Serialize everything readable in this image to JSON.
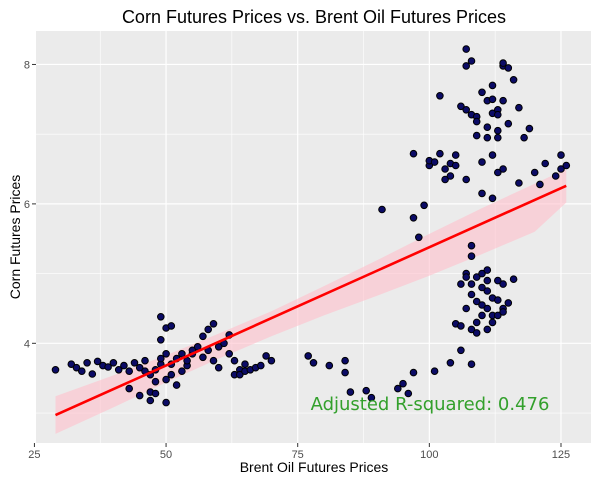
{
  "chart_data": {
    "type": "scatter",
    "title": "Corn Futures Prices vs. Brent Oil Futures Prices",
    "xlabel": "Brent Oil Futures Prices",
    "ylabel": "Corn Futures Prices",
    "xlim": [
      25.3,
      130.7
    ],
    "ylim": [
      2.57,
      8.48
    ],
    "xticks": [
      25,
      50,
      75,
      100,
      125
    ],
    "yticks": [
      4,
      6,
      8
    ],
    "grid": true,
    "legend": "none",
    "colors": {
      "panel": "#ebebeb",
      "grid": "#ffffff",
      "point_fill": "#0b0b66",
      "point_stroke": "#000000",
      "fit_line": "#ff0000",
      "confidence_band": "#ffc0cb",
      "annotation": "#33a02c"
    },
    "annotation": "Adjusted R-squared:  0.476",
    "fit": {
      "x": [
        29,
        126
      ],
      "y": [
        2.97,
        6.26
      ]
    },
    "band": {
      "x": [
        29,
        40,
        50,
        60,
        70,
        80,
        90,
        100,
        110,
        120,
        126
      ],
      "upper": [
        3.24,
        3.54,
        3.83,
        4.14,
        4.46,
        4.82,
        5.19,
        5.57,
        5.94,
        6.29,
        6.5
      ],
      "lower": [
        2.7,
        3.08,
        3.44,
        3.78,
        4.1,
        4.4,
        4.68,
        4.97,
        5.28,
        5.6,
        6.02
      ]
    },
    "points": [
      [
        29,
        3.62
      ],
      [
        32,
        3.7
      ],
      [
        33,
        3.65
      ],
      [
        34,
        3.6
      ],
      [
        35,
        3.72
      ],
      [
        36,
        3.56
      ],
      [
        37,
        3.74
      ],
      [
        38,
        3.68
      ],
      [
        39,
        3.66
      ],
      [
        40,
        3.72
      ],
      [
        41,
        3.62
      ],
      [
        42,
        3.68
      ],
      [
        43,
        3.6
      ],
      [
        43,
        3.35
      ],
      [
        44,
        3.72
      ],
      [
        45,
        3.65
      ],
      [
        45,
        3.25
      ],
      [
        46,
        3.6
      ],
      [
        46,
        3.75
      ],
      [
        47,
        3.55
      ],
      [
        47,
        3.3
      ],
      [
        47,
        3.18
      ],
      [
        48,
        3.28
      ],
      [
        48,
        3.62
      ],
      [
        48,
        3.45
      ],
      [
        49,
        3.7
      ],
      [
        49,
        3.78
      ],
      [
        49,
        4.05
      ],
      [
        49,
        4.38
      ],
      [
        50,
        3.15
      ],
      [
        50,
        3.85
      ],
      [
        50,
        3.48
      ],
      [
        50,
        4.22
      ],
      [
        51,
        3.55
      ],
      [
        51,
        3.7
      ],
      [
        51,
        4.25
      ],
      [
        52,
        3.4
      ],
      [
        52,
        3.78
      ],
      [
        53,
        3.6
      ],
      [
        53,
        3.85
      ],
      [
        54,
        3.68
      ],
      [
        54,
        3.75
      ],
      [
        55,
        3.85
      ],
      [
        55,
        3.9
      ],
      [
        56,
        3.95
      ],
      [
        57,
        3.8
      ],
      [
        57,
        4.1
      ],
      [
        58,
        3.9
      ],
      [
        58,
        4.2
      ],
      [
        59,
        4.28
      ],
      [
        59,
        3.75
      ],
      [
        60,
        3.65
      ],
      [
        60,
        3.95
      ],
      [
        61,
        4.0
      ],
      [
        62,
        4.12
      ],
      [
        62,
        3.85
      ],
      [
        63,
        3.75
      ],
      [
        63,
        3.55
      ],
      [
        64,
        3.62
      ],
      [
        64,
        3.55
      ],
      [
        65,
        3.7
      ],
      [
        65,
        3.6
      ],
      [
        66,
        3.62
      ],
      [
        67,
        3.65
      ],
      [
        68,
        3.68
      ],
      [
        69,
        3.82
      ],
      [
        70,
        3.75
      ],
      [
        77,
        3.82
      ],
      [
        78,
        3.72
      ],
      [
        81,
        3.68
      ],
      [
        84,
        3.58
      ],
      [
        84,
        3.75
      ],
      [
        85,
        3.3
      ],
      [
        88,
        3.32
      ],
      [
        89,
        3.22
      ],
      [
        91,
        5.92
      ],
      [
        94,
        3.35
      ],
      [
        95,
        3.42
      ],
      [
        96,
        3.28
      ],
      [
        97,
        3.58
      ],
      [
        97,
        5.8
      ],
      [
        97,
        6.72
      ],
      [
        98,
        5.52
      ],
      [
        99,
        5.98
      ],
      [
        100,
        6.55
      ],
      [
        100,
        6.62
      ],
      [
        101,
        3.6
      ],
      [
        101,
        6.6
      ],
      [
        102,
        7.55
      ],
      [
        102,
        6.72
      ],
      [
        103,
        6.5
      ],
      [
        103,
        6.35
      ],
      [
        104,
        6.58
      ],
      [
        104,
        6.4
      ],
      [
        104,
        3.72
      ],
      [
        105,
        4.28
      ],
      [
        105,
        6.7
      ],
      [
        105,
        6.55
      ],
      [
        106,
        7.4
      ],
      [
        106,
        4.25
      ],
      [
        106,
        4.85
      ],
      [
        106,
        3.9
      ],
      [
        107,
        5.0
      ],
      [
        107,
        4.95
      ],
      [
        107,
        4.5
      ],
      [
        107,
        6.35
      ],
      [
        107,
        7.35
      ],
      [
        107,
        7.98
      ],
      [
        107,
        8.22
      ],
      [
        108,
        4.85
      ],
      [
        108,
        5.25
      ],
      [
        108,
        5.4
      ],
      [
        108,
        4.7
      ],
      [
        108,
        4.2
      ],
      [
        108,
        3.7
      ],
      [
        108,
        7.28
      ],
      [
        108,
        8.05
      ],
      [
        109,
        4.95
      ],
      [
        109,
        4.6
      ],
      [
        109,
        4.3
      ],
      [
        109,
        4.15
      ],
      [
        109,
        7.25
      ],
      [
        109,
        6.98
      ],
      [
        109,
        7.18
      ],
      [
        110,
        5.0
      ],
      [
        110,
        4.55
      ],
      [
        110,
        4.8
      ],
      [
        110,
        4.4
      ],
      [
        110,
        6.15
      ],
      [
        110,
        6.6
      ],
      [
        110,
        7.6
      ],
      [
        111,
        4.9
      ],
      [
        111,
        4.75
      ],
      [
        111,
        4.5
      ],
      [
        111,
        4.2
      ],
      [
        111,
        5.05
      ],
      [
        111,
        6.95
      ],
      [
        111,
        7.48
      ],
      [
        111,
        7.1
      ],
      [
        112,
        4.4
      ],
      [
        112,
        4.65
      ],
      [
        112,
        4.3
      ],
      [
        112,
        6.08
      ],
      [
        112,
        6.7
      ],
      [
        112,
        7.3
      ],
      [
        112,
        7.5
      ],
      [
        112,
        7.7
      ],
      [
        113,
        4.9
      ],
      [
        113,
        4.62
      ],
      [
        113,
        4.4
      ],
      [
        113,
        7.35
      ],
      [
        113,
        7.28
      ],
      [
        113,
        7.05
      ],
      [
        113,
        6.45
      ],
      [
        113,
        6.95
      ],
      [
        114,
        4.85
      ],
      [
        114,
        4.5
      ],
      [
        114,
        4.45
      ],
      [
        114,
        7.98
      ],
      [
        114,
        8.02
      ],
      [
        114,
        6.5
      ],
      [
        114,
        7.48
      ],
      [
        115,
        7.95
      ],
      [
        115,
        7.15
      ],
      [
        115,
        4.58
      ],
      [
        116,
        4.92
      ],
      [
        116,
        7.78
      ],
      [
        117,
        7.38
      ],
      [
        117,
        6.3
      ],
      [
        118,
        6.95
      ],
      [
        119,
        7.08
      ],
      [
        120,
        6.45
      ],
      [
        121,
        6.28
      ],
      [
        122,
        6.58
      ],
      [
        124,
        6.4
      ],
      [
        125,
        6.7
      ],
      [
        125,
        6.5
      ],
      [
        126,
        6.55
      ]
    ]
  }
}
